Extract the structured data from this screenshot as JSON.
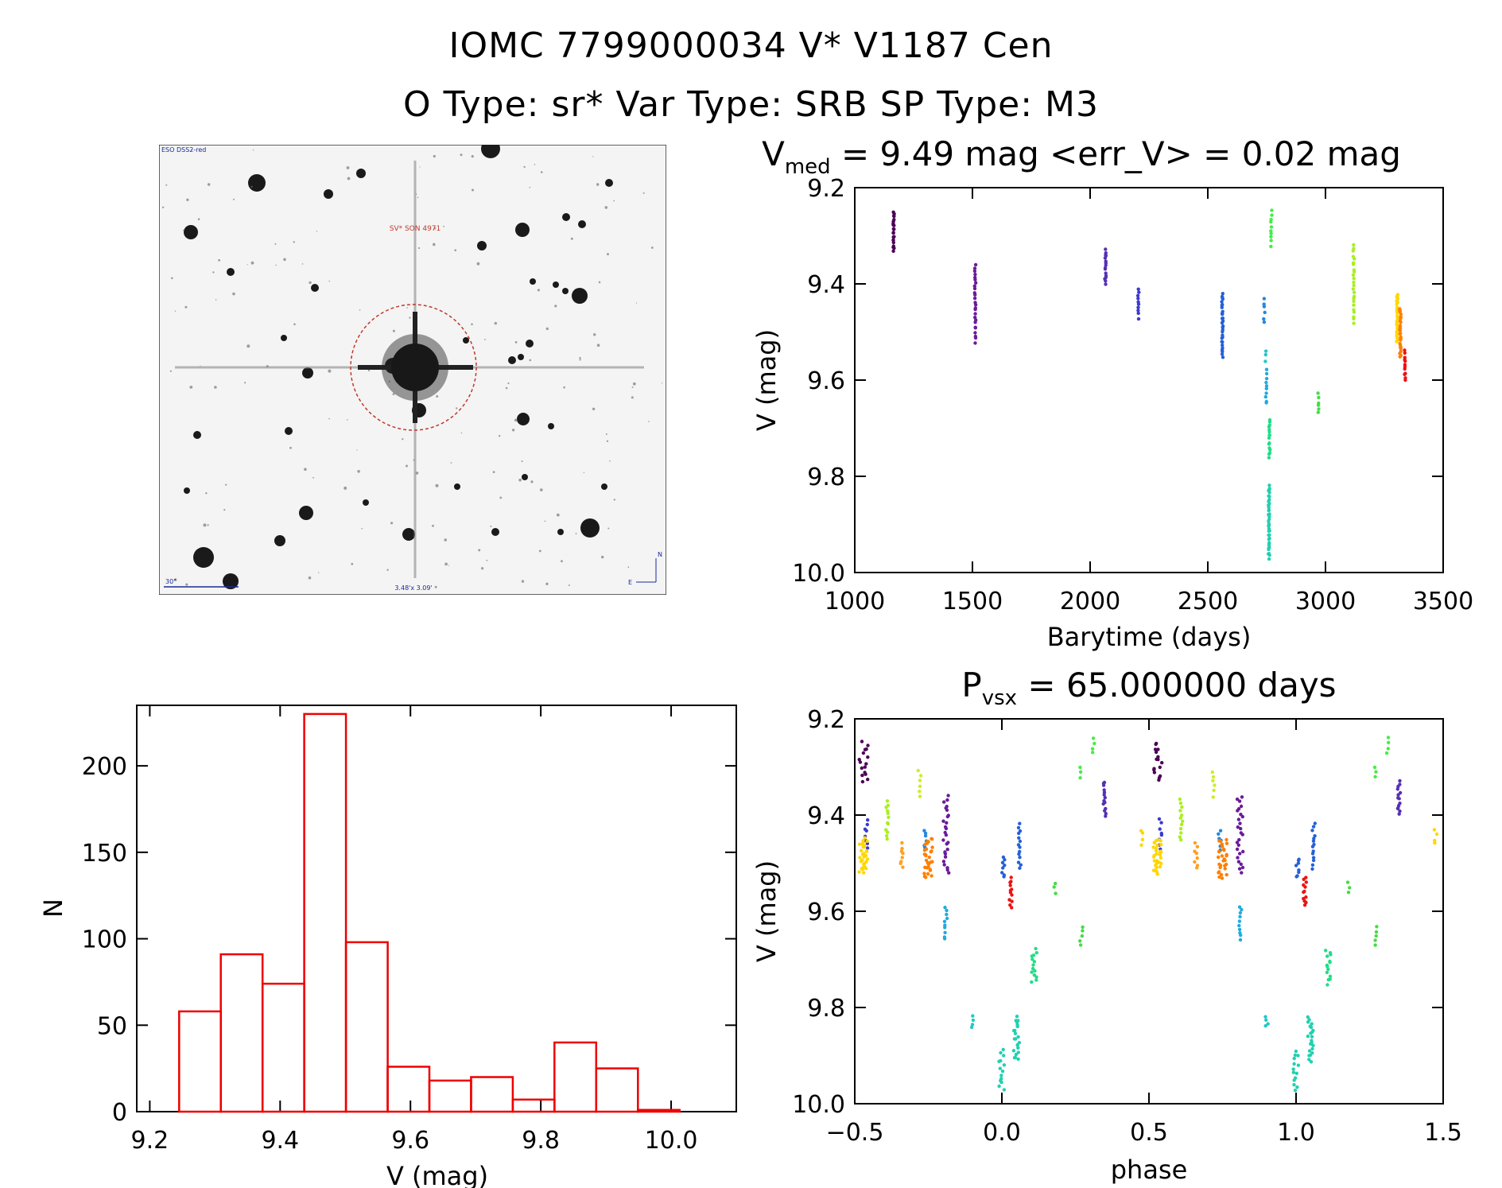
{
  "header": {
    "line1": "IOMC 7799000034    V* V1187 Cen",
    "line2": "O Type: sr*  Var Type: SRB  SP Type: M3"
  },
  "sky_image": {
    "survey": "ESO DSS2-red",
    "target_label": "SV* SON 4971",
    "scale_label": "30\"",
    "fov_label": "3.48'x 3.09'",
    "compass_n": "N",
    "compass_e": "E",
    "colors": {
      "background": "#f2f2f2",
      "circle": "#c0392b",
      "labels": "#1a2a9a"
    }
  },
  "chart_data": [
    {
      "type": "scatter",
      "id": "lightcurve",
      "title_main": "V",
      "title_sub": "med",
      "title_rest": " = 9.49 mag <err_V> = 0.02 mag",
      "xlabel": "Barytime (days)",
      "ylabel": "V (mag)",
      "xlim": [
        1000,
        3500
      ],
      "ylim": [
        10.0,
        9.2
      ],
      "xticks": [
        "1000",
        "1500",
        "2000",
        "2500",
        "3000",
        "3500"
      ],
      "yticks": [
        "9.2",
        "9.4",
        "9.6",
        "9.8",
        "10.0"
      ],
      "groups": [
        {
          "x": 1165,
          "y": [
            9.25,
            9.33
          ],
          "color": "#4b0055",
          "n": 22
        },
        {
          "x": 1512,
          "y": [
            9.36,
            9.52
          ],
          "color": "#6a1b9a",
          "n": 26
        },
        {
          "x": 2065,
          "y": [
            9.33,
            9.4
          ],
          "color": "#5530b5",
          "n": 16
        },
        {
          "x": 2205,
          "y": [
            9.41,
            9.47
          ],
          "color": "#3a3ad0",
          "n": 10
        },
        {
          "x": 2562,
          "y": [
            9.42,
            9.55
          ],
          "color": "#2460d8",
          "n": 30
        },
        {
          "x": 2740,
          "y": [
            9.43,
            9.48
          ],
          "color": "#2288e0",
          "n": 6
        },
        {
          "x": 2748,
          "y": [
            9.58,
            9.65
          ],
          "color": "#22aadd",
          "n": 10
        },
        {
          "x": 2760,
          "y": [
            9.82,
            9.97
          ],
          "color": "#22d0b0",
          "n": 40
        },
        {
          "x": 2762,
          "y": [
            9.68,
            9.76
          ],
          "color": "#22dd88",
          "n": 16
        },
        {
          "x": 2770,
          "y": [
            9.25,
            9.32
          ],
          "color": "#44ee44",
          "n": 10
        },
        {
          "x": 2745,
          "y": [
            9.54,
            9.56
          ],
          "color": "#22c8c8",
          "n": 3
        },
        {
          "x": 2970,
          "y": [
            9.63,
            9.67
          ],
          "color": "#44dd44",
          "n": 6
        },
        {
          "x": 3120,
          "y": [
            9.32,
            9.48
          ],
          "color": "#aaee22",
          "n": 24
        },
        {
          "x": 3305,
          "y": [
            9.42,
            9.52
          ],
          "color": "#ffd700",
          "n": 30
        },
        {
          "x": 3318,
          "y": [
            9.45,
            9.55
          ],
          "color": "#ff7f00",
          "n": 30
        },
        {
          "x": 3338,
          "y": [
            9.54,
            9.6
          ],
          "color": "#ee1111",
          "n": 12
        }
      ]
    },
    {
      "type": "bar",
      "id": "histogram",
      "xlabel": "V (mag)",
      "ylabel": "N",
      "xlim": [
        9.18,
        10.1
      ],
      "ylim": [
        0,
        235
      ],
      "xticks": [
        "9.2",
        "9.4",
        "9.6",
        "9.8",
        "10.0"
      ],
      "yticks": [
        "0",
        "50",
        "100",
        "150",
        "200"
      ],
      "bin_edges": [
        9.245,
        9.309,
        9.373,
        9.437,
        9.501,
        9.565,
        9.629,
        9.693,
        9.757,
        9.821,
        9.885,
        9.949,
        10.013
      ],
      "values": [
        58,
        91,
        74,
        230,
        98,
        26,
        18,
        20,
        7,
        40,
        25,
        1
      ],
      "color": "#ee0000"
    },
    {
      "type": "scatter",
      "id": "phased",
      "title_main": "P",
      "title_sub": "vsx",
      "title_rest": " = 65.000000 days",
      "xlabel": "phase",
      "ylabel": "V (mag)",
      "xlim": [
        -0.5,
        1.5
      ],
      "ylim": [
        10.0,
        9.2
      ],
      "xticks": [
        "−0.5",
        "0.0",
        "0.5",
        "1.0",
        "1.5"
      ],
      "yticks": [
        "9.2",
        "9.4",
        "9.6",
        "9.8",
        "10.0"
      ],
      "groups": [
        {
          "x": -0.47,
          "y": [
            9.25,
            9.33
          ],
          "color": "#4b0055",
          "n": 16,
          "w": 0.03
        },
        {
          "x": -0.19,
          "y": [
            9.36,
            9.52
          ],
          "color": "#6a1b9a",
          "n": 26,
          "w": 0.02
        },
        {
          "x": 0.35,
          "y": [
            9.33,
            9.4
          ],
          "color": "#5530b5",
          "n": 14,
          "w": 0.01
        },
        {
          "x": -0.46,
          "y": [
            9.41,
            9.47
          ],
          "color": "#3a3ad0",
          "n": 8,
          "w": 0.01
        },
        {
          "x": 0.06,
          "y": [
            9.42,
            9.51
          ],
          "color": "#2460d8",
          "n": 14,
          "w": 0.01
        },
        {
          "x": 0.005,
          "y": [
            9.49,
            9.53
          ],
          "color": "#2460d8",
          "n": 8,
          "w": 0.01
        },
        {
          "x": -0.26,
          "y": [
            9.43,
            9.47
          ],
          "color": "#2288e0",
          "n": 6,
          "w": 0.01
        },
        {
          "x": -0.19,
          "y": [
            9.59,
            9.66
          ],
          "color": "#22aadd",
          "n": 10,
          "w": 0.01
        },
        {
          "x": -0.1,
          "y": [
            9.82,
            9.84
          ],
          "color": "#22c8c8",
          "n": 4,
          "w": 0.01
        },
        {
          "x": 0.0,
          "y": [
            9.89,
            9.97
          ],
          "color": "#22d0b0",
          "n": 14,
          "w": 0.02
        },
        {
          "x": 0.05,
          "y": [
            9.82,
            9.91
          ],
          "color": "#22d0b0",
          "n": 22,
          "w": 0.02
        },
        {
          "x": 0.11,
          "y": [
            9.68,
            9.75
          ],
          "color": "#22dd88",
          "n": 14,
          "w": 0.02
        },
        {
          "x": 0.18,
          "y": [
            9.54,
            9.56
          ],
          "color": "#44dd44",
          "n": 3,
          "w": 0.01
        },
        {
          "x": 0.27,
          "y": [
            9.63,
            9.67
          ],
          "color": "#44dd44",
          "n": 5,
          "w": 0.01
        },
        {
          "x": 0.27,
          "y": [
            9.3,
            9.32
          ],
          "color": "#44ee44",
          "n": 3,
          "w": 0.01
        },
        {
          "x": 0.31,
          "y": [
            9.24,
            9.27
          ],
          "color": "#44ee44",
          "n": 4,
          "w": 0.01
        },
        {
          "x": -0.39,
          "y": [
            9.37,
            9.45
          ],
          "color": "#aaee22",
          "n": 12,
          "w": 0.01
        },
        {
          "x": -0.28,
          "y": [
            9.31,
            9.36
          ],
          "color": "#ccee22",
          "n": 6,
          "w": 0.01
        },
        {
          "x": -0.47,
          "y": [
            9.45,
            9.52
          ],
          "color": "#ffd700",
          "n": 30,
          "w": 0.03
        },
        {
          "x": 0.475,
          "y": [
            9.43,
            9.46
          ],
          "color": "#ffd700",
          "n": 4,
          "w": 0.01
        },
        {
          "x": -0.34,
          "y": [
            9.46,
            9.51
          ],
          "color": "#ffa020",
          "n": 8,
          "w": 0.01
        },
        {
          "x": -0.25,
          "y": [
            9.45,
            9.53
          ],
          "color": "#ff7f00",
          "n": 30,
          "w": 0.03
        },
        {
          "x": 0.03,
          "y": [
            9.53,
            9.59
          ],
          "color": "#ee1111",
          "n": 12,
          "w": 0.01
        },
        {
          "x": 0.53,
          "y": [
            9.25,
            9.33
          ],
          "color": "#4b0055",
          "n": 16,
          "w": 0.03
        },
        {
          "x": 0.81,
          "y": [
            9.36,
            9.52
          ],
          "color": "#6a1b9a",
          "n": 26,
          "w": 0.02
        },
        {
          "x": 1.35,
          "y": [
            9.33,
            9.4
          ],
          "color": "#5530b5",
          "n": 14,
          "w": 0.01
        },
        {
          "x": 0.54,
          "y": [
            9.41,
            9.47
          ],
          "color": "#3a3ad0",
          "n": 8,
          "w": 0.01
        },
        {
          "x": 1.06,
          "y": [
            9.42,
            9.51
          ],
          "color": "#2460d8",
          "n": 14,
          "w": 0.01
        },
        {
          "x": 1.005,
          "y": [
            9.49,
            9.53
          ],
          "color": "#2460d8",
          "n": 8,
          "w": 0.01
        },
        {
          "x": 0.74,
          "y": [
            9.43,
            9.47
          ],
          "color": "#2288e0",
          "n": 6,
          "w": 0.01
        },
        {
          "x": 0.81,
          "y": [
            9.59,
            9.66
          ],
          "color": "#22aadd",
          "n": 10,
          "w": 0.01
        },
        {
          "x": 0.9,
          "y": [
            9.82,
            9.84
          ],
          "color": "#22c8c8",
          "n": 4,
          "w": 0.01
        },
        {
          "x": 1.0,
          "y": [
            9.89,
            9.97
          ],
          "color": "#22d0b0",
          "n": 14,
          "w": 0.02
        },
        {
          "x": 1.05,
          "y": [
            9.82,
            9.91
          ],
          "color": "#22d0b0",
          "n": 22,
          "w": 0.02
        },
        {
          "x": 1.11,
          "y": [
            9.68,
            9.75
          ],
          "color": "#22dd88",
          "n": 14,
          "w": 0.02
        },
        {
          "x": 1.18,
          "y": [
            9.54,
            9.56
          ],
          "color": "#44dd44",
          "n": 3,
          "w": 0.01
        },
        {
          "x": 1.27,
          "y": [
            9.63,
            9.67
          ],
          "color": "#44dd44",
          "n": 5,
          "w": 0.01
        },
        {
          "x": 1.27,
          "y": [
            9.3,
            9.32
          ],
          "color": "#44ee44",
          "n": 3,
          "w": 0.01
        },
        {
          "x": 1.31,
          "y": [
            9.24,
            9.27
          ],
          "color": "#44ee44",
          "n": 4,
          "w": 0.01
        },
        {
          "x": 0.61,
          "y": [
            9.37,
            9.45
          ],
          "color": "#aaee22",
          "n": 12,
          "w": 0.01
        },
        {
          "x": 0.72,
          "y": [
            9.31,
            9.36
          ],
          "color": "#ccee22",
          "n": 6,
          "w": 0.01
        },
        {
          "x": 0.53,
          "y": [
            9.45,
            9.52
          ],
          "color": "#ffd700",
          "n": 30,
          "w": 0.03
        },
        {
          "x": 1.475,
          "y": [
            9.43,
            9.46
          ],
          "color": "#ffd700",
          "n": 4,
          "w": 0.01
        },
        {
          "x": 0.66,
          "y": [
            9.46,
            9.51
          ],
          "color": "#ffa020",
          "n": 8,
          "w": 0.01
        },
        {
          "x": 0.75,
          "y": [
            9.45,
            9.53
          ],
          "color": "#ff7f00",
          "n": 30,
          "w": 0.03
        },
        {
          "x": 1.03,
          "y": [
            9.53,
            9.59
          ],
          "color": "#ee1111",
          "n": 12,
          "w": 0.01
        }
      ]
    }
  ]
}
